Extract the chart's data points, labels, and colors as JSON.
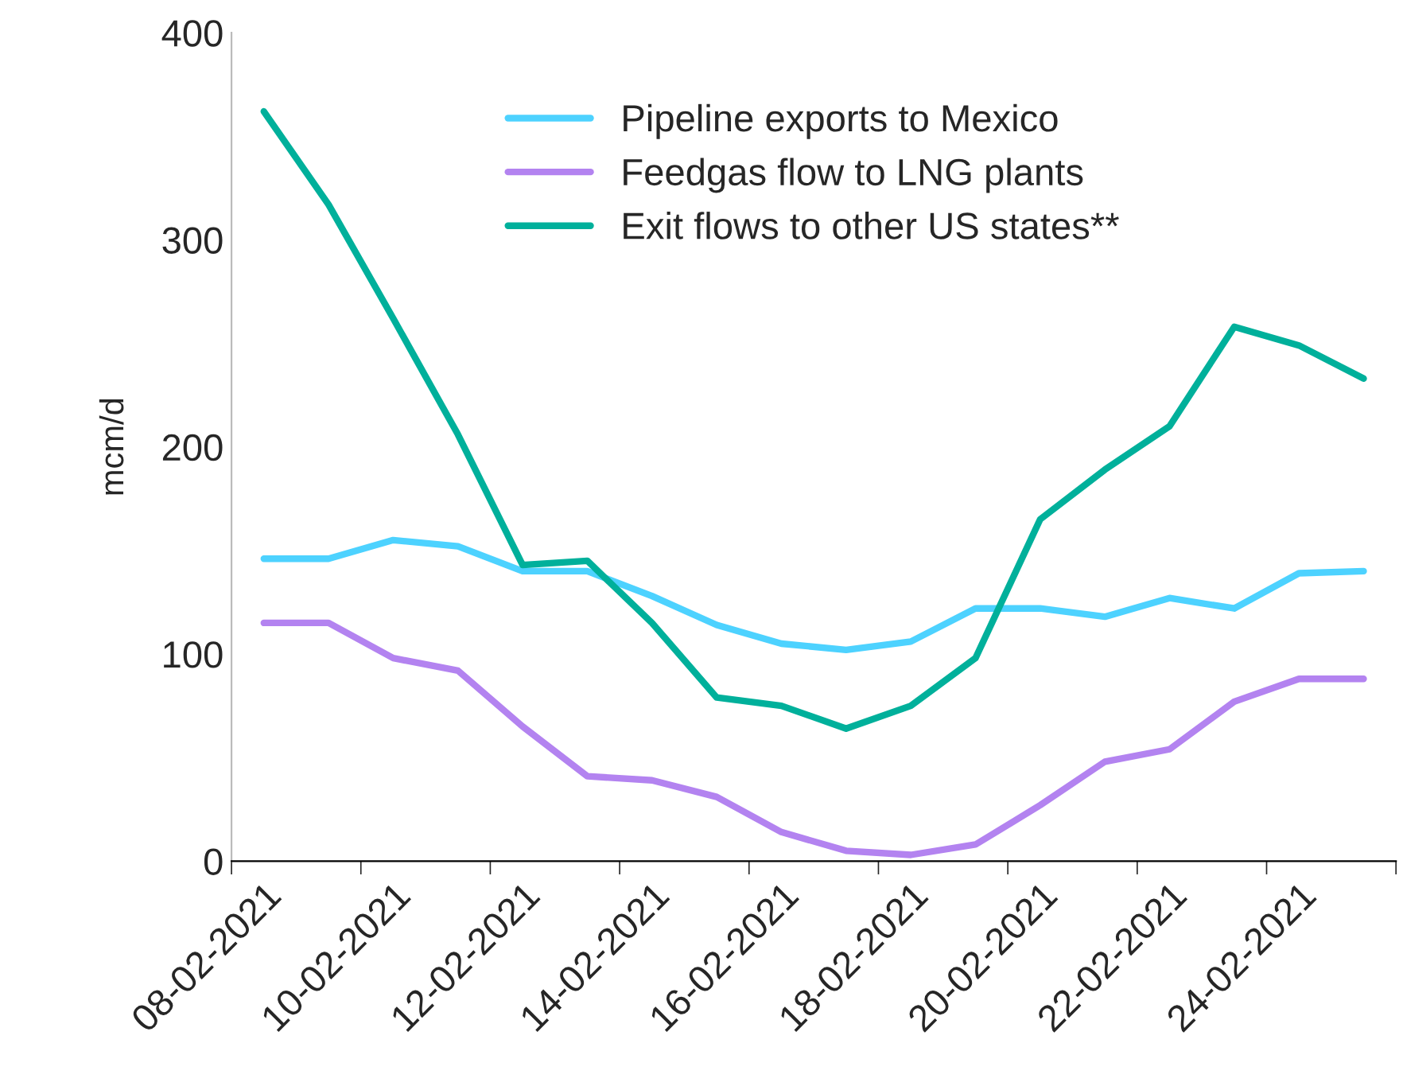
{
  "chart_data": {
    "type": "line",
    "ylabel": "mcm/d",
    "ylim": [
      0,
      400
    ],
    "yticks": [
      0,
      100,
      200,
      300,
      400
    ],
    "grid": false,
    "legend": "top",
    "marker": "none",
    "line_style": "solid",
    "categories": [
      "08-02-2021",
      null,
      "10-02-2021",
      null,
      "12-02-2021",
      null,
      "14-02-2021",
      null,
      "16-02-2021",
      null,
      "18-02-2021",
      null,
      "20-02-2021",
      null,
      "22-02-2021",
      null,
      "24-02-2021",
      null
    ],
    "series": [
      {
        "name": "Pipeline exports to Mexico",
        "color": "#4dd2ff",
        "values": [
          146,
          146,
          155,
          152,
          140,
          140,
          128,
          114,
          105,
          102,
          106,
          122,
          122,
          118,
          127,
          122,
          139,
          140
        ]
      },
      {
        "name": "Feedgas flow to LNG plants",
        "color": "#b383f0",
        "values": [
          115,
          115,
          98,
          92,
          65,
          41,
          39,
          31,
          14,
          5,
          3,
          8,
          27,
          48,
          54,
          77,
          88,
          88
        ]
      },
      {
        "name": "Exit flows to other US states**",
        "color": "#00b09b",
        "values": [
          362,
          317,
          262,
          206,
          143,
          145,
          115,
          79,
          75,
          64,
          75,
          98,
          165,
          189,
          210,
          258,
          249,
          233
        ]
      }
    ]
  }
}
